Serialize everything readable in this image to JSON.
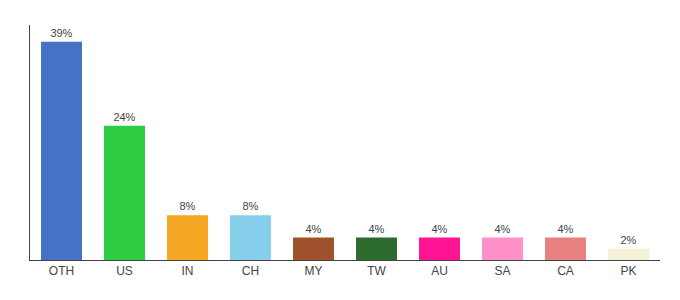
{
  "chart_data": {
    "type": "bar",
    "categories": [
      "OTH",
      "US",
      "IN",
      "CH",
      "MY",
      "TW",
      "AU",
      "SA",
      "CA",
      "PK"
    ],
    "values": [
      39,
      24,
      8,
      8,
      4,
      4,
      4,
      4,
      4,
      2
    ],
    "value_labels": [
      "39%",
      "24%",
      "8%",
      "8%",
      "4%",
      "4%",
      "4%",
      "4%",
      "4%",
      "2%"
    ],
    "colors": [
      "#4472c4",
      "#2ecc40",
      "#f5a623",
      "#87ceeb",
      "#a0522d",
      "#2d6a2d",
      "#ff1493",
      "#ff90c8",
      "#e88080",
      "#f5f0d8"
    ],
    "ylim": [
      0,
      42
    ],
    "grid": false,
    "data_labels": true,
    "tick_labels": "x"
  }
}
